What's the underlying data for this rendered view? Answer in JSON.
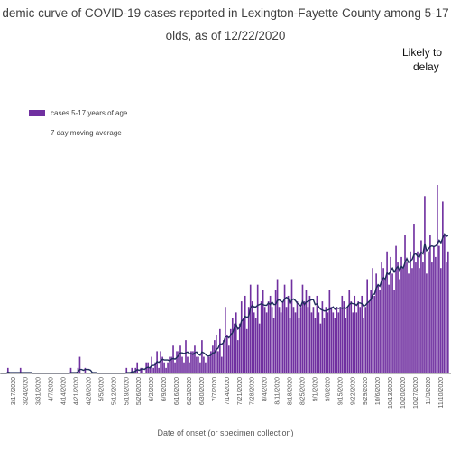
{
  "chart_data": {
    "type": "bar",
    "title_line1": "demic curve of COVID-19 cases reported in Lexington-Fayette County among 5-17",
    "title_line2": "olds, as of 12/22/2020",
    "annotation_line1": "Likely to",
    "annotation_line2": "delay",
    "xlabel": "Date of onset (or specimen collection)",
    "ylabel": "",
    "legend": {
      "bar_label": "cases 5-17 years of age",
      "line_label": "7 day moving average",
      "placement": "top-left"
    },
    "colors": {
      "bars": "#7030A0",
      "moving_average": "#1F2C5C",
      "axis": "#A6A6A6"
    },
    "x_ticks": [
      "3/17/2020",
      "3/24/2020",
      "3/31/2020",
      "4/7/2020",
      "4/14/2020",
      "4/21/2020",
      "4/28/2020",
      "5/5/2020",
      "5/12/2020",
      "5/19/2020",
      "5/26/2020",
      "6/2/2020",
      "6/9/2020",
      "6/16/2020",
      "6/23/2020",
      "6/30/2020",
      "7/7/2020",
      "7/14/2020",
      "7/21/2020",
      "7/28/2020",
      "8/4/2020",
      "8/11/2020",
      "8/18/2020",
      "8/25/2020",
      "9/1/2020",
      "9/8/2020",
      "9/15/2020",
      "9/22/2020",
      "9/29/2020",
      "10/6/2020",
      "10/13/2020",
      "10/20/2020",
      "10/27/2020",
      "11/3/2020",
      "11/10/2020"
    ],
    "start_date": "3/10/2020",
    "grid": false,
    "values": [
      0,
      0,
      0,
      0,
      1,
      0,
      0,
      0,
      0,
      0,
      0,
      1,
      0,
      0,
      0,
      0,
      0,
      0,
      0,
      0,
      0,
      0,
      0,
      0,
      0,
      0,
      0,
      0,
      0,
      0,
      0,
      0,
      0,
      0,
      0,
      0,
      0,
      0,
      0,
      1,
      0,
      0,
      0,
      1,
      3,
      0,
      0,
      1,
      0,
      0,
      0,
      0,
      0,
      0,
      0,
      0,
      0,
      0,
      0,
      0,
      0,
      0,
      0,
      0,
      0,
      0,
      0,
      0,
      0,
      0,
      1,
      0,
      0,
      1,
      0,
      1,
      2,
      0,
      1,
      1,
      0,
      2,
      2,
      1,
      3,
      1,
      2,
      4,
      1,
      4,
      3,
      2,
      1,
      2,
      3,
      3,
      5,
      2,
      4,
      4,
      5,
      3,
      2,
      6,
      3,
      2,
      4,
      4,
      5,
      3,
      3,
      2,
      6,
      3,
      2,
      3,
      3,
      4,
      5,
      6,
      7,
      4,
      8,
      3,
      6,
      12,
      7,
      5,
      8,
      10,
      9,
      11,
      6,
      9,
      13,
      10,
      14,
      8,
      12,
      16,
      13,
      11,
      10,
      16,
      9,
      13,
      15,
      12,
      11,
      13,
      14,
      12,
      10,
      15,
      17,
      12,
      11,
      13,
      16,
      12,
      14,
      10,
      17,
      12,
      11,
      13,
      10,
      12,
      16,
      13,
      15,
      12,
      14,
      11,
      12,
      10,
      14,
      11,
      9,
      13,
      10,
      12,
      11,
      15,
      12,
      11,
      10,
      12,
      11,
      12,
      14,
      13,
      10,
      12,
      15,
      13,
      11,
      14,
      11,
      13,
      12,
      14,
      10,
      12,
      17,
      13,
      15,
      19,
      14,
      18,
      16,
      15,
      20,
      19,
      17,
      22,
      16,
      21,
      18,
      15,
      23,
      20,
      17,
      21,
      19,
      25,
      20,
      18,
      22,
      19,
      27,
      20,
      22,
      19,
      24,
      20,
      32,
      18,
      22,
      25,
      20,
      23,
      21,
      34,
      23,
      19,
      31,
      25,
      20,
      22
    ]
  }
}
